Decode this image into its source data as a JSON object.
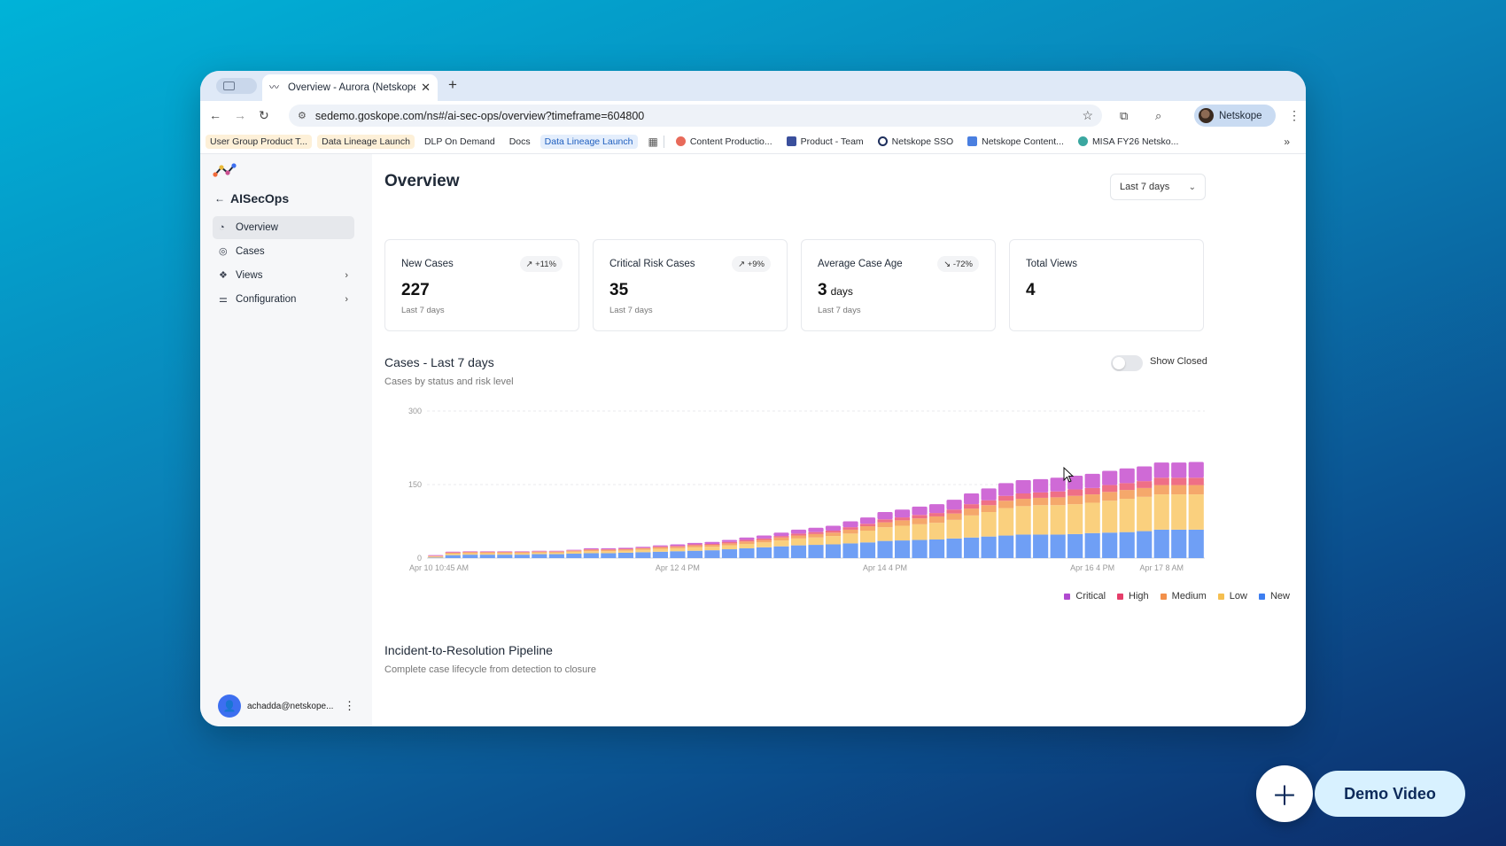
{
  "browser": {
    "tab_title": "Overview - Aurora (Netskope",
    "tab_close": "✕",
    "new_tab": "+",
    "url": "sedemo.goskope.com/ns#/ai-sec-ops/overview?timeframe=604800",
    "profile_name": "Netskope"
  },
  "bookmarks": [
    {
      "label": "User Group Product T..."
    },
    {
      "label": "Data Lineage Launch"
    },
    {
      "label": "DLP On Demand"
    },
    {
      "label": "Docs"
    },
    {
      "label": "Data Lineage Launch"
    },
    {
      "label": "Content Productio..."
    },
    {
      "label": "Product - Team"
    },
    {
      "label": "Netskope SSO"
    },
    {
      "label": "Netskope Content..."
    },
    {
      "label": "MISA FY26 Netsko..."
    }
  ],
  "sidebar": {
    "app_name": "AISecOps",
    "items": [
      {
        "label": "Overview"
      },
      {
        "label": "Cases"
      },
      {
        "label": "Views"
      },
      {
        "label": "Configuration"
      }
    ],
    "user": "achadda@netskope..."
  },
  "main": {
    "title": "Overview",
    "range": "Last 7 days",
    "cards": [
      {
        "label": "New Cases",
        "badge": "↗ +11%",
        "value": "227",
        "unit": "",
        "sub": "Last 7 days"
      },
      {
        "label": "Critical Risk Cases",
        "badge": "↗ +9%",
        "value": "35",
        "unit": "",
        "sub": "Last 7 days"
      },
      {
        "label": "Average Case Age",
        "badge": "↘ -72%",
        "value": "3",
        "unit": "days",
        "sub": "Last 7 days"
      },
      {
        "label": "Total Views",
        "badge": "",
        "value": "4",
        "unit": "",
        "sub": ""
      }
    ],
    "chart_title": "Cases - Last 7 days",
    "chart_subtitle": "Cases by status and risk level",
    "toggle_label": "Show Closed",
    "pipeline_title": "Incident-to-Resolution Pipeline",
    "pipeline_subtitle": "Complete case lifecycle from detection to closure"
  },
  "colors": {
    "critical": "#cf6ad6",
    "high": "#ef6f86",
    "medium": "#f5a86b",
    "low": "#fad07e",
    "new": "#6f9ff5"
  },
  "chart_data": {
    "type": "bar",
    "stacked": true,
    "ylim": [
      0,
      300
    ],
    "yticks": [
      0,
      150,
      300
    ],
    "xtick_labels": [
      {
        "index": 0,
        "label": "Apr 10 10:45 AM"
      },
      {
        "index": 14,
        "label": "Apr 12 4 PM"
      },
      {
        "index": 26,
        "label": "Apr 14 4 PM"
      },
      {
        "index": 38,
        "label": "Apr 16 4 PM"
      },
      {
        "index": 42,
        "label": "Apr 17 8 AM"
      }
    ],
    "series": [
      {
        "name": "New",
        "values": [
          1,
          6,
          7,
          7,
          7,
          7,
          8,
          8,
          9,
          10,
          10,
          11,
          12,
          13,
          14,
          15,
          16,
          18,
          20,
          22,
          24,
          26,
          27,
          28,
          30,
          32,
          35,
          36,
          37,
          38,
          40,
          42,
          44,
          46,
          48,
          48,
          48,
          49,
          51,
          52,
          53,
          55,
          58,
          58,
          58
        ]
      },
      {
        "name": "Low",
        "values": [
          2,
          3,
          3,
          3,
          3,
          3,
          3,
          3,
          4,
          4,
          4,
          4,
          5,
          6,
          6,
          7,
          7,
          8,
          9,
          10,
          12,
          14,
          15,
          17,
          20,
          24,
          28,
          30,
          32,
          34,
          38,
          45,
          50,
          56,
          58,
          60,
          60,
          61,
          62,
          65,
          68,
          70,
          72,
          72,
          72
        ]
      },
      {
        "name": "Medium",
        "values": [
          1,
          2,
          2,
          2,
          2,
          2,
          2,
          2,
          2,
          3,
          3,
          3,
          3,
          3,
          3,
          4,
          4,
          4,
          5,
          5,
          6,
          6,
          7,
          7,
          8,
          9,
          10,
          11,
          12,
          13,
          13,
          14,
          14,
          15,
          15,
          15,
          16,
          17,
          17,
          18,
          18,
          18,
          19,
          19,
          19
        ]
      },
      {
        "name": "High",
        "values": [
          1,
          1,
          1,
          1,
          1,
          1,
          1,
          1,
          1,
          1,
          1,
          1,
          1,
          2,
          2,
          2,
          2,
          3,
          3,
          3,
          3,
          4,
          4,
          4,
          5,
          5,
          6,
          6,
          7,
          7,
          8,
          9,
          10,
          10,
          11,
          11,
          12,
          13,
          13,
          14,
          14,
          14,
          15,
          15,
          15
        ]
      },
      {
        "name": "Critical",
        "values": [
          1,
          1,
          1,
          1,
          1,
          1,
          1,
          1,
          1,
          2,
          2,
          2,
          2,
          2,
          3,
          3,
          4,
          4,
          5,
          6,
          7,
          8,
          9,
          10,
          12,
          13,
          15,
          16,
          17,
          18,
          20,
          22,
          24,
          26,
          27,
          27,
          28,
          28,
          29,
          29,
          30,
          30,
          31,
          31,
          32
        ]
      }
    ]
  }
}
